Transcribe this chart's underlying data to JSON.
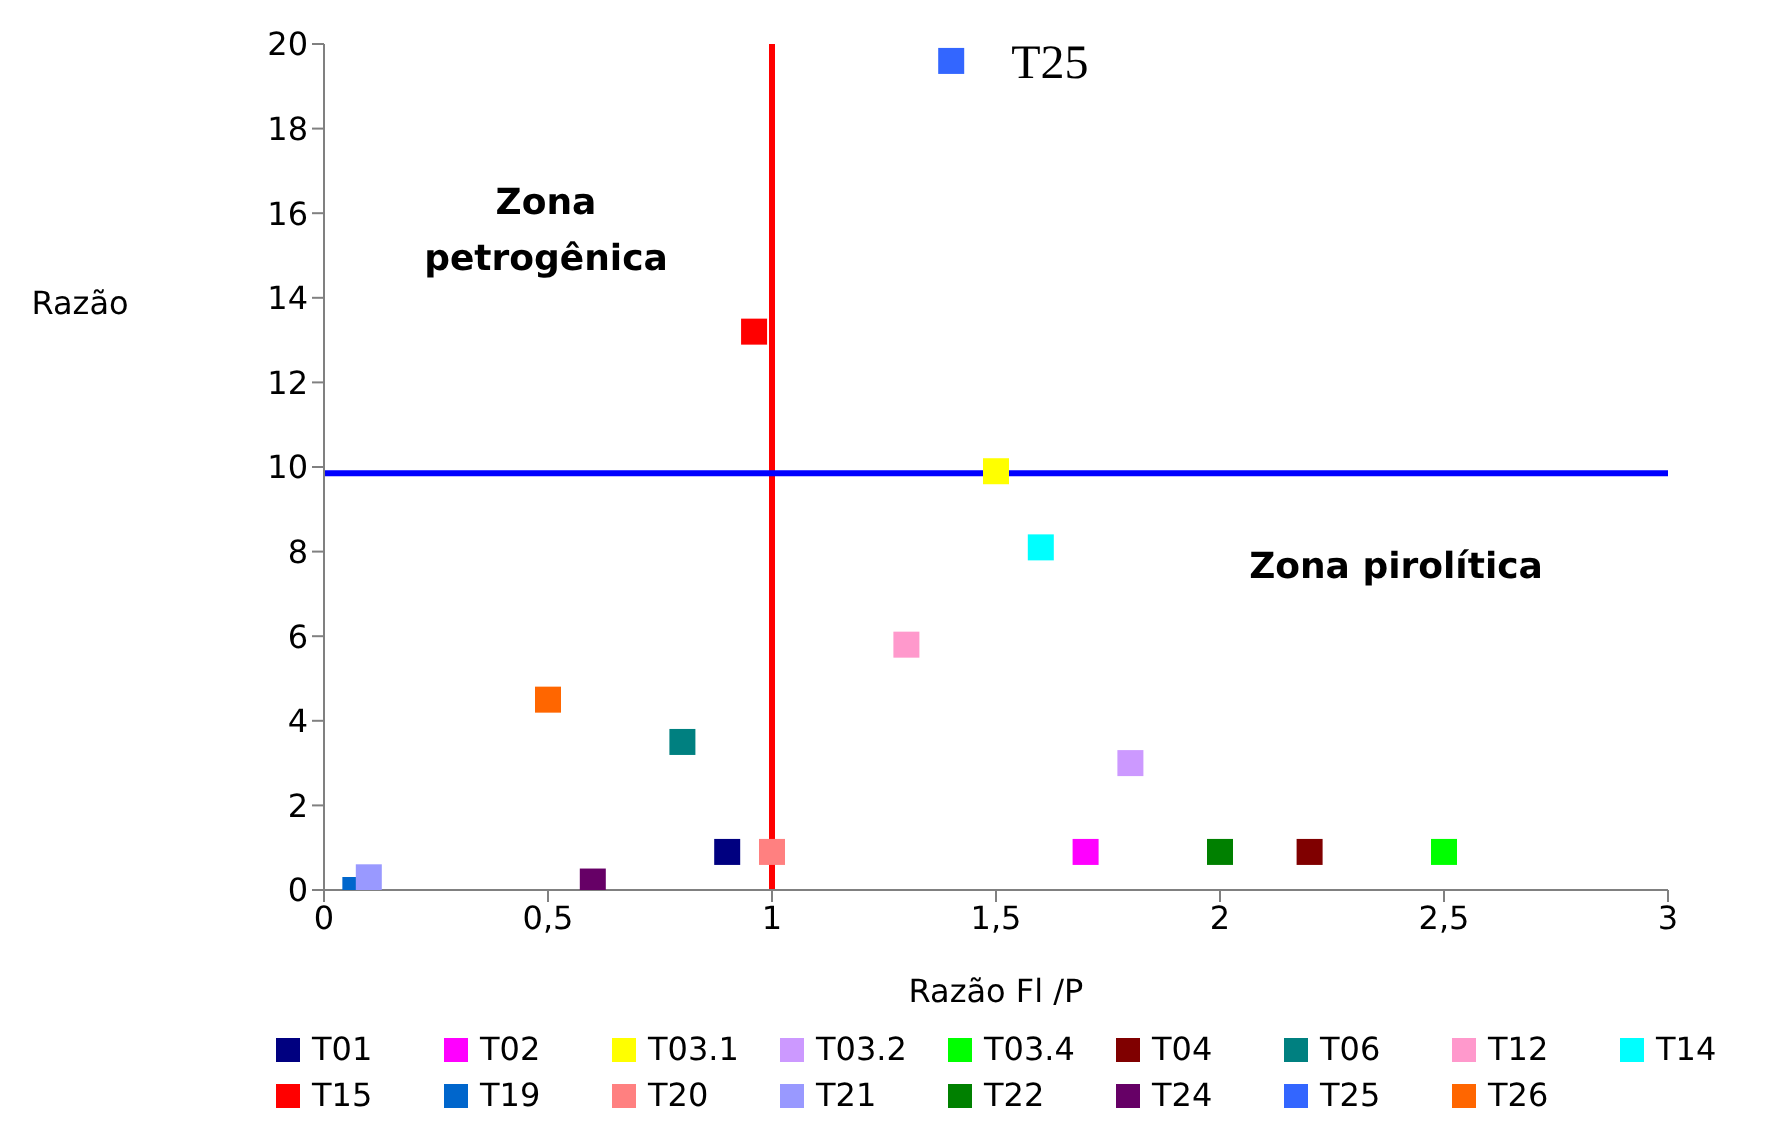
{
  "chart_data": {
    "type": "scatter",
    "xlabel": "Razão Fl /P",
    "ylabel": "Razão",
    "xlim": [
      0,
      3
    ],
    "xticks": [
      0,
      {
        "value": 0.5,
        "label": "0,5"
      },
      1,
      {
        "value": 1.5,
        "label": "1,5"
      },
      2,
      {
        "value": 2.5,
        "label": "2,5"
      },
      3
    ],
    "ylim": [
      0,
      20
    ],
    "yticks": [
      0,
      2,
      4,
      6,
      8,
      10,
      12,
      14,
      16,
      18,
      20
    ],
    "grid": false,
    "legend": "bottom",
    "marker": "square",
    "series": [
      {
        "name": "T01",
        "color": "#000080",
        "x": [
          0.9
        ],
        "values": [
          0.9
        ]
      },
      {
        "name": "T02",
        "color": "#ff00ff",
        "x": [
          1.7
        ],
        "values": [
          0.9
        ]
      },
      {
        "name": "T03.1",
        "color": "#ffff00",
        "x": [
          1.5
        ],
        "values": [
          9.9
        ]
      },
      {
        "name": "T03.2",
        "color": "#cc99ff",
        "x": [
          1.8
        ],
        "values": [
          3.0
        ]
      },
      {
        "name": "T03.4",
        "color": "#00ff00",
        "x": [
          2.5
        ],
        "values": [
          0.9
        ]
      },
      {
        "name": "T04",
        "color": "#800000",
        "x": [
          2.2
        ],
        "values": [
          0.9
        ]
      },
      {
        "name": "T06",
        "color": "#008080",
        "x": [
          0.8
        ],
        "values": [
          3.5
        ]
      },
      {
        "name": "T12",
        "color": "#ff99cc",
        "x": [
          1.3
        ],
        "values": [
          5.8
        ]
      },
      {
        "name": "T14",
        "color": "#00ffff",
        "x": [
          1.6
        ],
        "values": [
          8.1
        ]
      },
      {
        "name": "T15",
        "color": "#ff0000",
        "x": [
          0.96
        ],
        "values": [
          13.2
        ]
      },
      {
        "name": "T19",
        "color": "#0066cc",
        "x": [
          0.07
        ],
        "values": [
          0
        ]
      },
      {
        "name": "T20",
        "color": "#ff8080",
        "x": [
          1.0
        ],
        "values": [
          0.9
        ]
      },
      {
        "name": "T21",
        "color": "#9999ff",
        "x": [
          0.1
        ],
        "values": [
          0.3
        ]
      },
      {
        "name": "T22",
        "color": "#008000",
        "x": [
          2.0
        ],
        "values": [
          0.9
        ]
      },
      {
        "name": "T24",
        "color": "#660066",
        "x": [
          0.6
        ],
        "values": [
          0.2
        ]
      },
      {
        "name": "T25",
        "color": "#3366ff",
        "x": [
          1.4
        ],
        "values": [
          19.6
        ]
      },
      {
        "name": "T26",
        "color": "#ff6600",
        "x": [
          0.5
        ],
        "values": [
          4.5
        ]
      }
    ],
    "ref_lines": [
      {
        "axis": "x",
        "value": 1,
        "color": "#ff0000"
      },
      {
        "axis": "y",
        "value": 9.85,
        "color": "#0000ff"
      }
    ],
    "annotations": [
      {
        "text": "T25",
        "x": 1.4,
        "y": 19.6
      },
      "Zona petrogênica",
      "Zona pirolítica"
    ]
  }
}
